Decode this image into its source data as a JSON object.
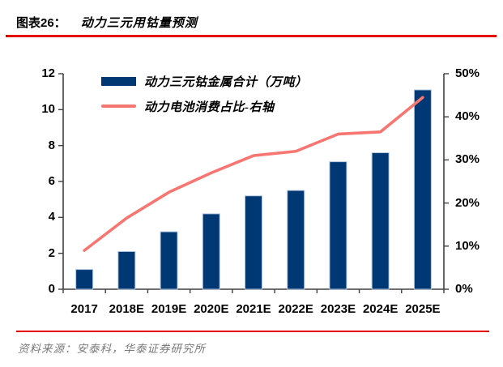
{
  "header": {
    "figure_label": "图表26：",
    "title": "动力三元用钴量预测"
  },
  "legend": {
    "bar_label": "动力三元钴金属合计（万吨）",
    "line_label": "动力电池消费占比-右轴"
  },
  "chart_data": {
    "type": "bar+line",
    "categories": [
      "2017",
      "2018E",
      "2019E",
      "2020E",
      "2021E",
      "2022E",
      "2023E",
      "2024E",
      "2025E"
    ],
    "series": [
      {
        "name": "动力三元钴金属合计（万吨）",
        "type": "bar",
        "axis": "left",
        "values": [
          1.1,
          2.1,
          3.2,
          4.2,
          5.2,
          5.5,
          7.1,
          7.6,
          11.1
        ]
      },
      {
        "name": "动力电池消费占比-右轴",
        "type": "line",
        "axis": "right",
        "values": [
          9,
          16.5,
          22.5,
          27,
          31,
          32,
          36,
          36.5,
          44.5
        ]
      }
    ],
    "left_axis": {
      "min": 0,
      "max": 12,
      "ticks": [
        0,
        2,
        4,
        6,
        8,
        10,
        12
      ],
      "labels": [
        "0",
        "2",
        "4",
        "6",
        "8",
        "10",
        "12"
      ]
    },
    "right_axis": {
      "min": 0,
      "max": 50,
      "ticks": [
        0,
        10,
        20,
        30,
        40,
        50
      ],
      "labels": [
        "0%",
        "10%",
        "20%",
        "30%",
        "40%",
        "50%"
      ]
    },
    "grid": false,
    "legend_position": "top-left-inside"
  },
  "footer": {
    "source": "资料来源：安泰科，华泰证券研究所"
  },
  "colors": {
    "bar": "#003873",
    "bar_edge": "#b3c6e0",
    "line": "#f87672",
    "rule": "#e60000",
    "axis": "#404040",
    "source_text": "#7a7a7a"
  }
}
